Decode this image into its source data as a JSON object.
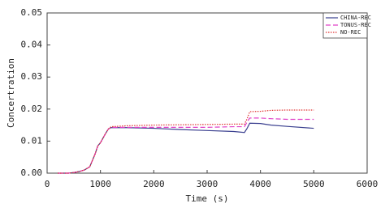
{
  "chart_data": {
    "type": "line",
    "x_label": "Time (s)",
    "y_label": "Concertration",
    "x": [
      200,
      400,
      500,
      600,
      700,
      800,
      850,
      900,
      950,
      1000,
      1050,
      1100,
      1150,
      1200,
      1500,
      2000,
      2500,
      3000,
      3500,
      3700,
      3750,
      3800,
      4000,
      4200,
      4500,
      5000
    ],
    "series": [
      {
        "name": "CHINA-REC",
        "color": "#3a3f8f",
        "dash": "solid",
        "values": [
          0,
          0,
          0.0002,
          0.0005,
          0.001,
          0.002,
          0.004,
          0.006,
          0.0085,
          0.0095,
          0.011,
          0.0125,
          0.0138,
          0.0142,
          0.0142,
          0.014,
          0.0136,
          0.0133,
          0.013,
          0.0127,
          0.014,
          0.0156,
          0.0155,
          0.015,
          0.0146,
          0.014
        ]
      },
      {
        "name": "TONUS-REC",
        "color": "#e040c8",
        "dash": "dashed",
        "values": [
          0,
          0,
          0.0002,
          0.0005,
          0.001,
          0.002,
          0.004,
          0.006,
          0.0085,
          0.0095,
          0.011,
          0.0125,
          0.0138,
          0.0143,
          0.0143,
          0.0143,
          0.0143,
          0.0143,
          0.0145,
          0.0145,
          0.016,
          0.0172,
          0.0172,
          0.017,
          0.0168,
          0.0168
        ]
      },
      {
        "name": "NO-REC",
        "color": "#e03030",
        "dash": "dotted",
        "values": [
          0,
          0,
          0.0002,
          0.0005,
          0.001,
          0.002,
          0.004,
          0.006,
          0.0085,
          0.0095,
          0.011,
          0.0125,
          0.0138,
          0.0145,
          0.0148,
          0.015,
          0.0151,
          0.0152,
          0.0153,
          0.0153,
          0.017,
          0.0192,
          0.0193,
          0.0196,
          0.0197,
          0.0197
        ]
      }
    ],
    "xlim": [
      0,
      6000
    ],
    "xticks": [
      0,
      1000,
      2000,
      3000,
      4000,
      5000,
      6000
    ],
    "ylim": [
      0,
      0.05
    ],
    "yticks": [
      {
        "value": 0,
        "label": "0.00"
      },
      0.01,
      0.02,
      0.03,
      0.04,
      0.05
    ],
    "grid": false,
    "legend": "upper right"
  }
}
